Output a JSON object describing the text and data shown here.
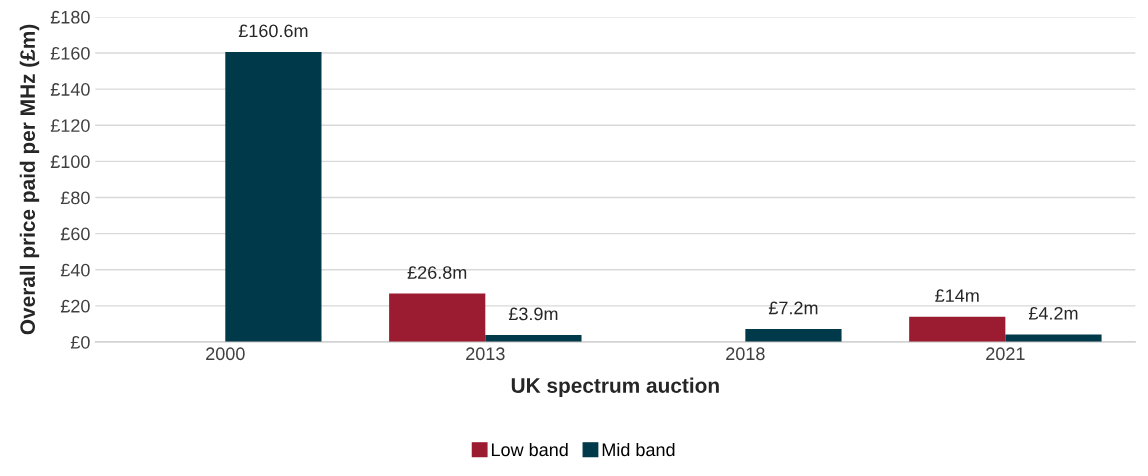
{
  "chart_data": {
    "type": "bar",
    "xlabel": "UK spectrum auction",
    "ylabel": "Overall price paid per MHz (£m)",
    "categories": [
      "2000",
      "2013",
      "2018",
      "2021"
    ],
    "series": [
      {
        "name": "Low band",
        "color": "#9b1c31",
        "values": [
          null,
          26.8,
          null,
          14
        ],
        "value_labels": [
          null,
          "£26.8m",
          null,
          "£14m"
        ]
      },
      {
        "name": "Mid band",
        "color": "#003a4a",
        "values": [
          160.6,
          3.9,
          7.2,
          4.2
        ],
        "value_labels": [
          "£160.6m",
          "£3.9m",
          "£7.2m",
          "£4.2m"
        ]
      }
    ],
    "ylim": [
      0,
      180
    ],
    "yticks": [
      {
        "value": 0,
        "label": "£0"
      },
      {
        "value": 20,
        "label": "£20"
      },
      {
        "value": 40,
        "label": "£40"
      },
      {
        "value": 60,
        "label": "£60"
      },
      {
        "value": 80,
        "label": "£80"
      },
      {
        "value": 100,
        "label": "£100"
      },
      {
        "value": 120,
        "label": "£120"
      },
      {
        "value": 140,
        "label": "£140"
      },
      {
        "value": 160,
        "label": "£160"
      },
      {
        "value": 180,
        "label": "£180"
      }
    ],
    "grid": "y",
    "legend": "bottom"
  }
}
